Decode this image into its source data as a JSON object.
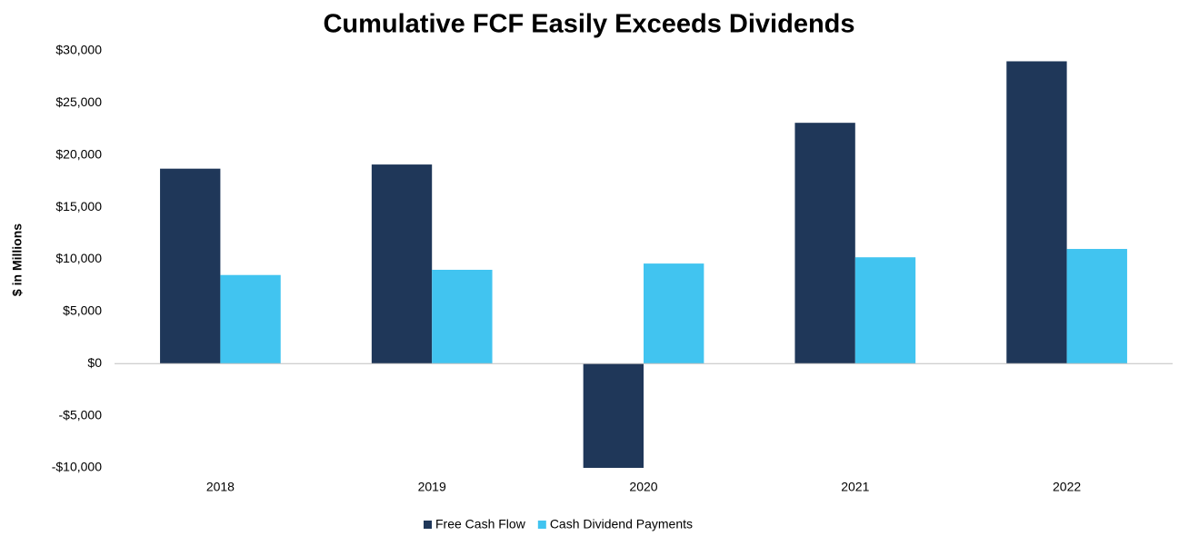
{
  "chart_data": {
    "type": "bar",
    "title": "Cumulative FCF Easily Exceeds Dividends",
    "y_label": "$ in Millions",
    "categories": [
      "2018",
      "2019",
      "2020",
      "2021",
      "2022"
    ],
    "series": [
      {
        "name": "Free Cash Flow",
        "color": "#1f3759",
        "values": [
          18700,
          19100,
          -10000,
          23100,
          29000
        ]
      },
      {
        "name": "Cash Dividend Payments",
        "color": "#41c4f0",
        "values": [
          8500,
          9000,
          9600,
          10200,
          11000
        ]
      }
    ],
    "ylim": [
      -10000,
      30000
    ],
    "yticks": [
      {
        "value": -10000,
        "label": "-$10,000"
      },
      {
        "value": -5000,
        "label": "-$5,000"
      },
      {
        "value": 0,
        "label": "$0"
      },
      {
        "value": 5000,
        "label": "$5,000"
      },
      {
        "value": 10000,
        "label": "$10,000"
      },
      {
        "value": 15000,
        "label": "$15,000"
      },
      {
        "value": 20000,
        "label": "$20,000"
      },
      {
        "value": 25000,
        "label": "$25,000"
      },
      {
        "value": 30000,
        "label": "$30,000"
      }
    ],
    "grid": false,
    "legend": "bottom"
  }
}
